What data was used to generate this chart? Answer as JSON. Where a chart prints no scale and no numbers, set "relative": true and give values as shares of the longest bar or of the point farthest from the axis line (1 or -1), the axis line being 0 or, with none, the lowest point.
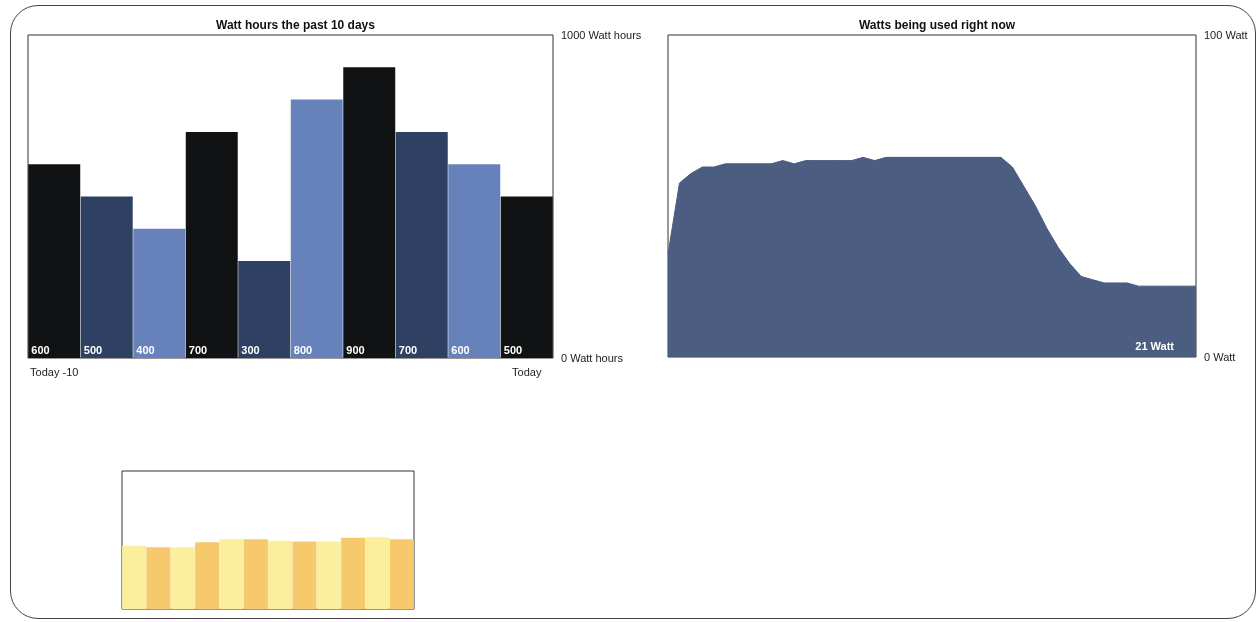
{
  "chart_data": [
    {
      "type": "bar",
      "title": "Watt hours the past 10 days",
      "categories": [
        "Today -10",
        null,
        null,
        null,
        null,
        null,
        null,
        null,
        null,
        "Today"
      ],
      "values": [
        600,
        500,
        400,
        700,
        300,
        800,
        900,
        700,
        600,
        500
      ],
      "colors": [
        "#101213",
        "#2e4163",
        "#6781bb",
        "#101213",
        "#2e4163",
        "#6781bb",
        "#101213",
        "#2e4163",
        "#6781bb",
        "#101213"
      ],
      "ylim": [
        0,
        1000
      ],
      "yticks": [
        {
          "value": 0,
          "label": "0 Watt hours"
        },
        {
          "value": 1000,
          "label": "1000 Watt hours"
        }
      ],
      "data_labels": true
    },
    {
      "type": "area",
      "title": "Watts being used right now",
      "categories": [
        null,
        null,
        null,
        null,
        null,
        null,
        null,
        null,
        null,
        null,
        null,
        null,
        null,
        null,
        null,
        null,
        null,
        null,
        null,
        null,
        null,
        null,
        null,
        null,
        null,
        null,
        null,
        null,
        null,
        null,
        null,
        null,
        null,
        null,
        null,
        null,
        null,
        null,
        null,
        null,
        null,
        null,
        null,
        null,
        null,
        null,
        null
      ],
      "values": [
        32,
        54,
        57,
        59,
        59,
        60,
        60,
        60,
        60,
        60,
        61,
        60,
        61,
        61,
        61,
        61,
        61,
        62,
        61,
        62,
        62,
        62,
        62,
        62,
        62,
        62,
        62,
        62,
        62,
        62,
        59,
        53,
        47,
        40,
        34,
        29,
        25,
        24,
        23,
        23,
        23,
        22,
        22,
        22,
        22,
        22,
        22
      ],
      "color": "#4b5d80",
      "ylim": [
        0,
        100
      ],
      "yticks": [
        {
          "value": 0,
          "label": "0 Watt"
        },
        {
          "value": 100,
          "label": "100 Watt"
        }
      ],
      "annotations": [
        "21 Watt"
      ]
    },
    {
      "type": "bar",
      "relative": true,
      "categories": [
        null,
        null,
        null,
        null,
        null,
        null,
        null,
        null,
        null,
        null,
        null,
        null
      ],
      "values": [
        0.88,
        0.86,
        0.86,
        0.93,
        0.97,
        0.97,
        0.95,
        0.94,
        0.94,
        0.99,
        1,
        0.97
      ],
      "colors": [
        "#fbef9e",
        "#f6c96c",
        "#fbef9e",
        "#f6c96c",
        "#fbef9e",
        "#f6c96c",
        "#fbef9e",
        "#f6c96c",
        "#fbef9e",
        "#f6c96c",
        "#fbef9e",
        "#f6c96c"
      ]
    }
  ]
}
